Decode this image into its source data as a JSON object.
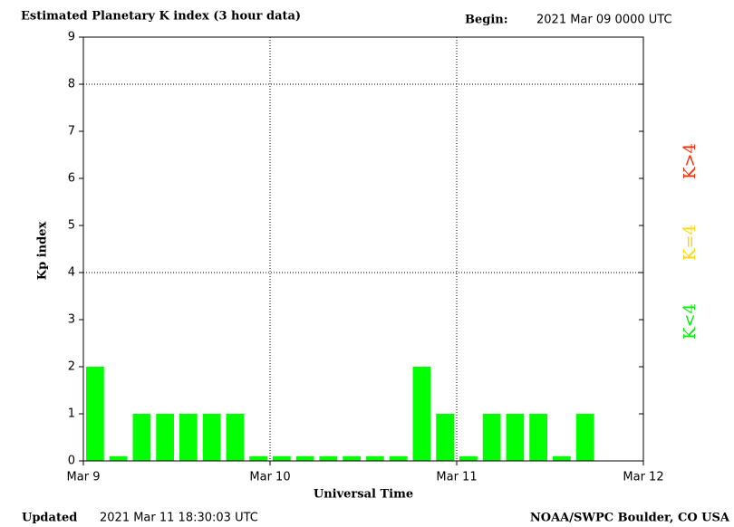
{
  "chart_data": {
    "type": "bar",
    "title": "Estimated Planetary K index (3 hour data)",
    "begin_label": "Begin:",
    "begin": "2021 Mar 09 0000 UTC",
    "x_label": "Universal Time",
    "y_label": "Kp index",
    "updated_label": "Updated",
    "updated": "2021 Mar 11 18:30:03 UTC",
    "credit": "NOAA/SWPC Boulder, CO USA",
    "x": [
      0,
      3,
      6,
      9,
      12,
      15,
      18,
      21,
      24,
      27,
      30,
      33,
      36,
      39,
      42,
      45,
      48,
      51,
      54,
      57,
      60,
      63
    ],
    "values": [
      2,
      0.1,
      1,
      1,
      1,
      1,
      1,
      0.1,
      0.1,
      0.1,
      0.1,
      0.1,
      0.1,
      0.1,
      2,
      1,
      0.1,
      1,
      1,
      1,
      0.1,
      1
    ],
    "color": "#00ff00",
    "xlim": [
      0,
      72
    ],
    "xticks": [
      {
        "value": 0,
        "label": "Mar 9"
      },
      {
        "value": 24,
        "label": "Mar 10"
      },
      {
        "value": 48,
        "label": "Mar 11"
      },
      {
        "value": 72,
        "label": "Mar 12"
      }
    ],
    "ylim": [
      0,
      9
    ],
    "yticks": [
      0,
      1,
      2,
      3,
      4,
      5,
      6,
      7,
      8,
      9
    ],
    "ygrid": [
      4,
      8
    ],
    "xgrid": [
      24,
      48
    ],
    "legend": [
      {
        "label": "K<4",
        "color": "#00ee00"
      },
      {
        "label": "K=4",
        "color": "#ffd700"
      },
      {
        "label": "K>4",
        "color": "#ff2a00"
      }
    ]
  }
}
